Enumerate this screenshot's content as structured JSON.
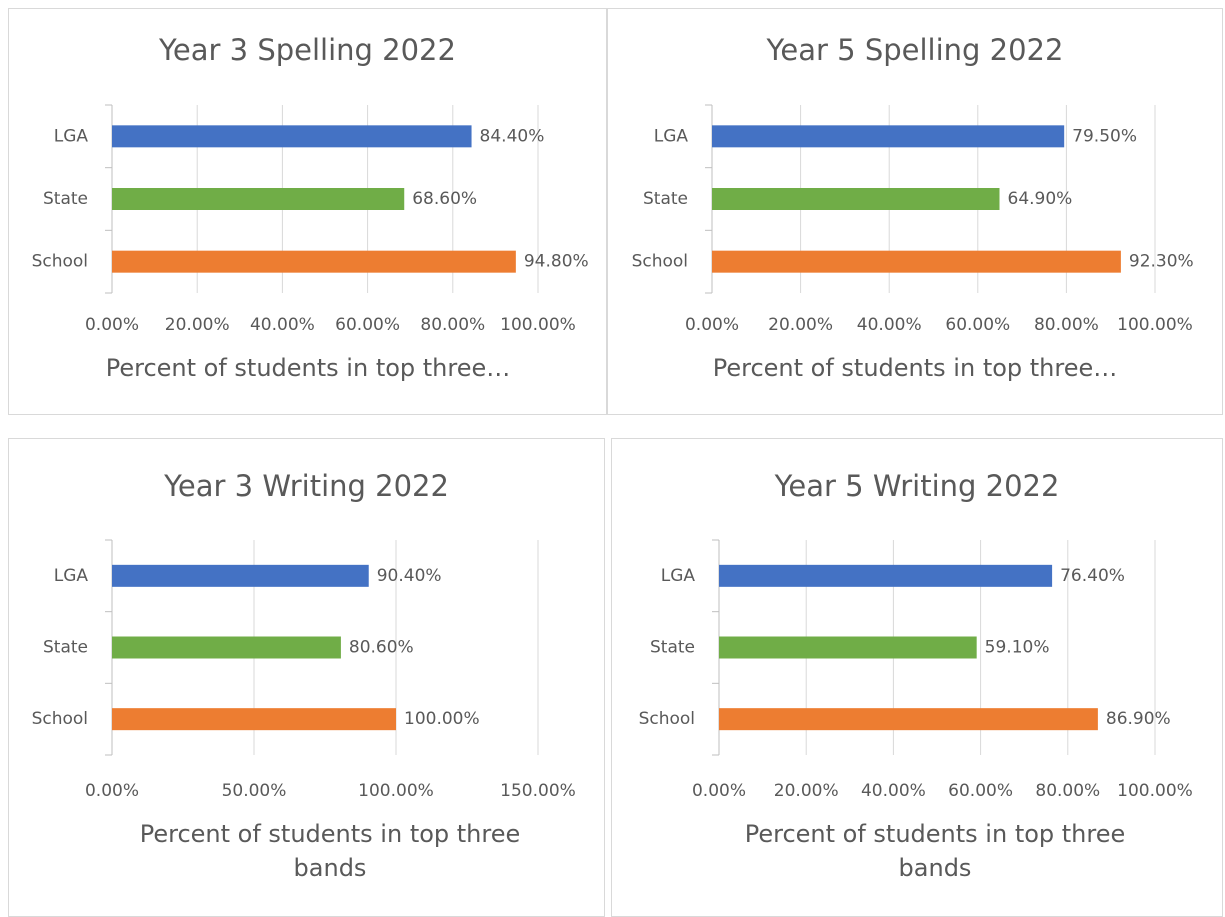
{
  "chart_data": [
    {
      "type": "bar",
      "orientation": "horizontal",
      "title": "Year 3 Spelling 2022",
      "x_label": "Percent of students in top three…",
      "categories": [
        "LGA",
        "State",
        "School"
      ],
      "values": [
        84.4,
        68.6,
        94.8
      ],
      "value_labels": [
        "84.40%",
        "68.60%",
        "94.80%"
      ],
      "colors": [
        "#4472c4",
        "#70ad47",
        "#ed7d31"
      ],
      "xlim": [
        0,
        100
      ],
      "xticks": [
        {
          "value": 0,
          "label": "0.00%"
        },
        {
          "value": 20,
          "label": "20.00%"
        },
        {
          "value": 40,
          "label": "40.00%"
        },
        {
          "value": 60,
          "label": "60.00%"
        },
        {
          "value": 80,
          "label": "80.00%"
        },
        {
          "value": 100,
          "label": "100.00%"
        }
      ],
      "grid": true
    },
    {
      "type": "bar",
      "orientation": "horizontal",
      "title": "Year 5 Spelling 2022",
      "x_label": "Percent of students in top three…",
      "categories": [
        "LGA",
        "State",
        "School"
      ],
      "values": [
        79.5,
        64.9,
        92.3
      ],
      "value_labels": [
        "79.50%",
        "64.90%",
        "92.30%"
      ],
      "colors": [
        "#4472c4",
        "#70ad47",
        "#ed7d31"
      ],
      "xlim": [
        0,
        100
      ],
      "xticks": [
        {
          "value": 0,
          "label": "0.00%"
        },
        {
          "value": 20,
          "label": "20.00%"
        },
        {
          "value": 40,
          "label": "40.00%"
        },
        {
          "value": 60,
          "label": "60.00%"
        },
        {
          "value": 80,
          "label": "80.00%"
        },
        {
          "value": 100,
          "label": "100.00%"
        }
      ],
      "grid": true
    },
    {
      "type": "bar",
      "orientation": "horizontal",
      "title": "Year 3 Writing 2022",
      "x_label": "Percent of students in top three bands",
      "categories": [
        "LGA",
        "State",
        "School"
      ],
      "values": [
        90.4,
        80.6,
        100
      ],
      "value_labels": [
        "90.40%",
        "80.60%",
        "100.00%"
      ],
      "colors": [
        "#4472c4",
        "#70ad47",
        "#ed7d31"
      ],
      "xlim": [
        0,
        150
      ],
      "xticks": [
        {
          "value": 0,
          "label": "0.00%"
        },
        {
          "value": 50,
          "label": "50.00%"
        },
        {
          "value": 100,
          "label": "100.00%"
        },
        {
          "value": 150,
          "label": "150.00%"
        }
      ],
      "grid": true
    },
    {
      "type": "bar",
      "orientation": "horizontal",
      "title": "Year 5 Writing 2022",
      "x_label": "Percent of students in top three bands",
      "categories": [
        "LGA",
        "State",
        "School"
      ],
      "values": [
        76.4,
        59.1,
        86.9
      ],
      "value_labels": [
        "76.40%",
        "59.10%",
        "86.90%"
      ],
      "colors": [
        "#4472c4",
        "#70ad47",
        "#ed7d31"
      ],
      "xlim": [
        0,
        100
      ],
      "xticks": [
        {
          "value": 0,
          "label": "0.00%"
        },
        {
          "value": 20,
          "label": "20.00%"
        },
        {
          "value": 40,
          "label": "40.00%"
        },
        {
          "value": 60,
          "label": "60.00%"
        },
        {
          "value": 80,
          "label": "80.00%"
        },
        {
          "value": 100,
          "label": "100.00%"
        }
      ],
      "grid": true
    }
  ]
}
